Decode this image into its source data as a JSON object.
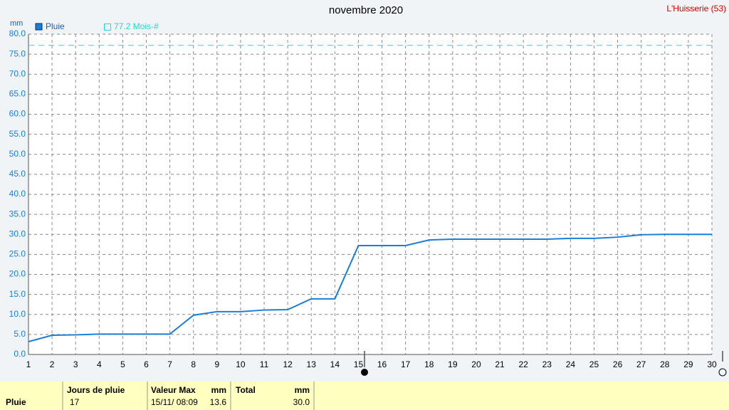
{
  "chart_data": {
    "type": "line",
    "title": "novembre 2020",
    "location": "L'Huisserie (53)",
    "y_unit": "mm",
    "x": [
      1,
      2,
      3,
      4,
      5,
      6,
      7,
      8,
      9,
      10,
      11,
      12,
      13,
      14,
      15,
      16,
      17,
      18,
      19,
      20,
      21,
      22,
      23,
      24,
      25,
      26,
      27,
      28,
      29,
      30
    ],
    "series": [
      {
        "name": "Pluie",
        "color": "#1a7ed8",
        "values": [
          3.2,
          4.8,
          4.9,
          5.1,
          5.1,
          5.1,
          5.1,
          9.8,
          10.7,
          10.7,
          11.1,
          11.2,
          13.9,
          13.9,
          27.2,
          27.2,
          27.2,
          28.6,
          28.8,
          28.8,
          28.8,
          28.8,
          28.8,
          29.0,
          29.0,
          29.3,
          29.9,
          30.0,
          30.0,
          30.0
        ]
      }
    ],
    "reference_line": {
      "value": 77.2,
      "label": "77.2 Mois-#",
      "color": "#22d8d8"
    },
    "xlim": [
      1,
      30
    ],
    "xticks": [
      1,
      2,
      3,
      4,
      5,
      6,
      7,
      8,
      9,
      10,
      11,
      12,
      13,
      14,
      15,
      16,
      17,
      18,
      19,
      20,
      21,
      22,
      23,
      24,
      25,
      26,
      27,
      28,
      29,
      30
    ],
    "ylim": [
      0,
      80
    ],
    "yticks": [
      {
        "value": 0,
        "label": "0.0"
      },
      {
        "value": 5,
        "label": "5.0"
      },
      {
        "value": 10,
        "label": "10.0"
      },
      {
        "value": 15,
        "label": "15.0"
      },
      {
        "value": 20,
        "label": "20.0"
      },
      {
        "value": 25,
        "label": "25.0"
      },
      {
        "value": 30,
        "label": "30.0"
      },
      {
        "value": 35,
        "label": "35.0"
      },
      {
        "value": 40,
        "label": "40.0"
      },
      {
        "value": 45,
        "label": "45.0"
      },
      {
        "value": 50,
        "label": "50.0"
      },
      {
        "value": 55,
        "label": "55.0"
      },
      {
        "value": 60,
        "label": "60.0"
      },
      {
        "value": 65,
        "label": "65.0"
      },
      {
        "value": 70,
        "label": "70.0"
      },
      {
        "value": 75,
        "label": "75.0"
      },
      {
        "value": 80,
        "label": "80.0"
      }
    ],
    "grid": true
  },
  "footer": {
    "row_label": "Pluie",
    "days_header": "Jours de pluie",
    "days": "17",
    "max_header": "Valeur Max",
    "max_unit": "mm",
    "max_date": "15/11/ 08:09",
    "max_value": "13.6",
    "total_header": "Total",
    "total_unit": "mm",
    "total_value": "30.0"
  }
}
